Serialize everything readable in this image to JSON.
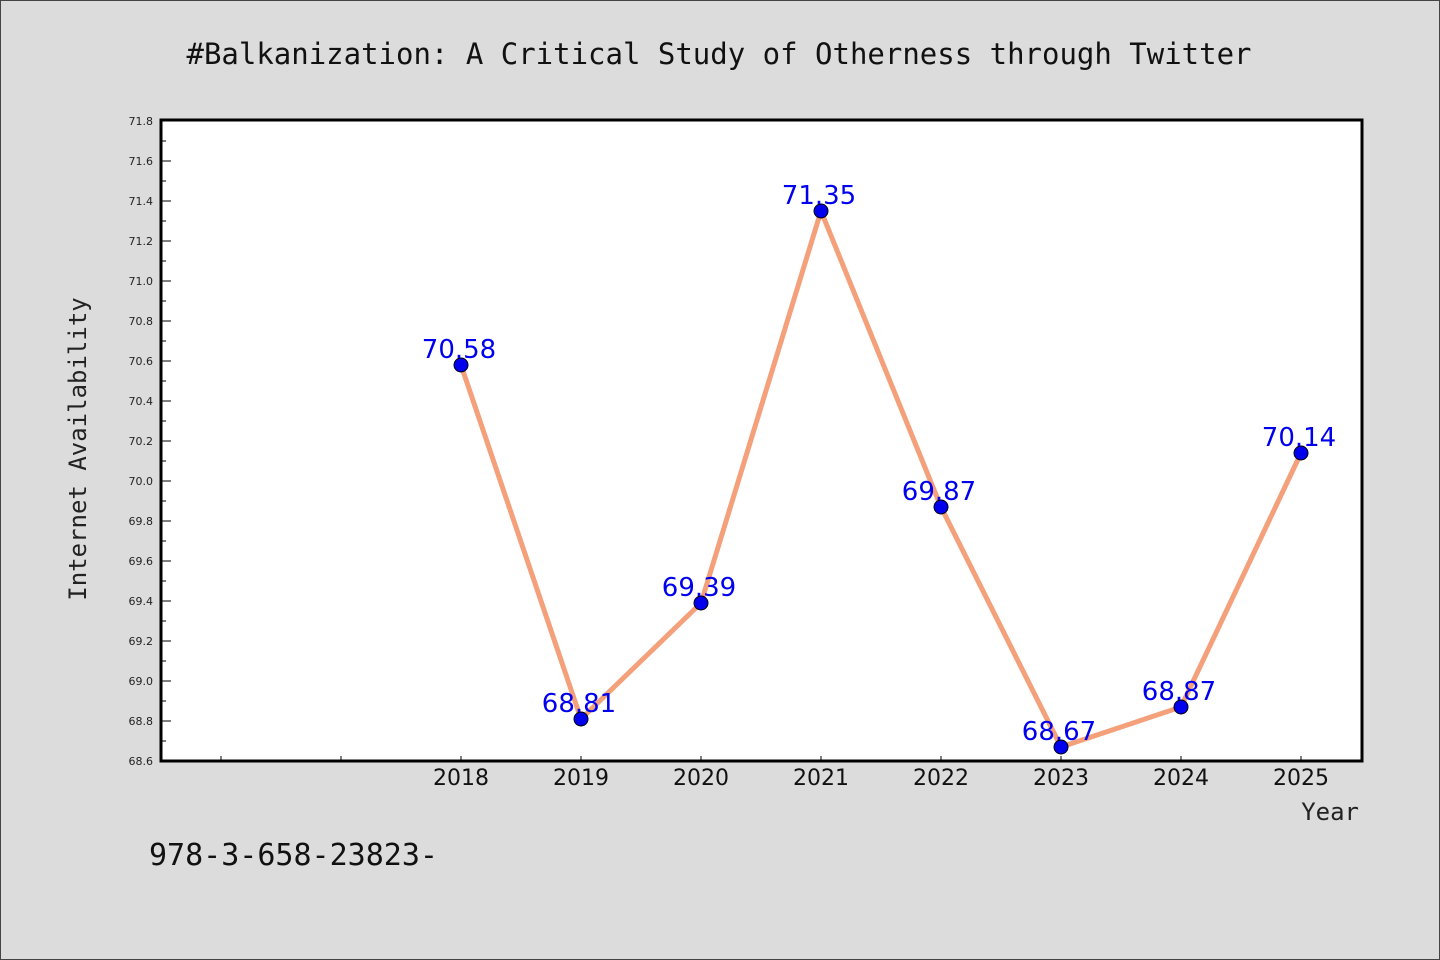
{
  "chart_data": {
    "type": "line",
    "title": "#Balkanization: A Critical Study of Otherness through Twitter",
    "xlabel": "Year",
    "ylabel": "Internet Availability",
    "x": [
      "2018",
      "2019",
      "2020",
      "2021",
      "2022",
      "2023",
      "2024",
      "2025"
    ],
    "series": [
      {
        "values": [
          70.58,
          68.81,
          69.39,
          71.35,
          69.87,
          68.67,
          68.87,
          70.14
        ],
        "labels": [
          "70.58",
          "68.81",
          "69.39",
          "71.35",
          "69.87",
          "68.67",
          "68.87",
          "70.14"
        ]
      }
    ],
    "ylim": [
      68.6,
      71.8
    ],
    "yticks": [
      "68.6",
      "68.8",
      "69.0",
      "69.2",
      "69.4",
      "69.6",
      "69.8",
      "70.0",
      "70.2",
      "70.4",
      "70.6",
      "70.8",
      "71.0",
      "71.2",
      "71.4",
      "71.6",
      "71.8"
    ],
    "grid": false,
    "legend": "none",
    "colors": {
      "line": "#f4a07a",
      "marker": "#0000ee",
      "label": "#0000ee",
      "plot_bg": "#ffffff",
      "page_bg": "#dcdcdc"
    }
  },
  "footer": {
    "isbn": "978-3-658-23823-"
  }
}
